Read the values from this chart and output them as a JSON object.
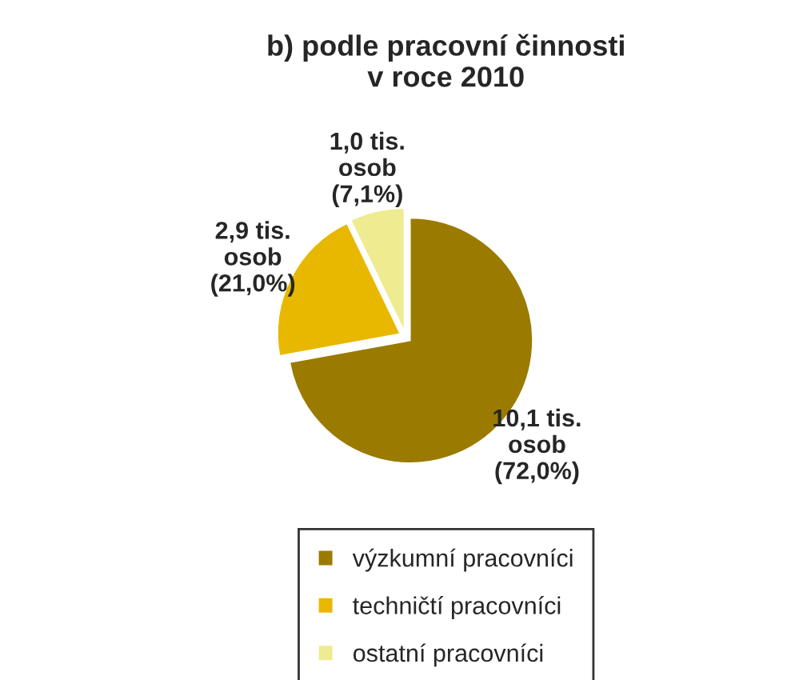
{
  "chart_data": {
    "type": "pie",
    "title": "b) podle pracovní činnosti\nv roce 2010",
    "categories": [
      "výzkumní pracovníci",
      "techničtí pracovníci",
      "ostatní pracovníci"
    ],
    "values": [
      10.1,
      2.9,
      1.0
    ],
    "colors": [
      "#9a7b00",
      "#e8b800",
      "#eeeb90"
    ],
    "value_labels": [
      "10,1 tis.\nosob\n(72,0%)",
      "2,9 tis.\nosob\n(21,0%)",
      "1,0 tis.\nosob\n(7,1%)"
    ],
    "legend": "bottom"
  }
}
